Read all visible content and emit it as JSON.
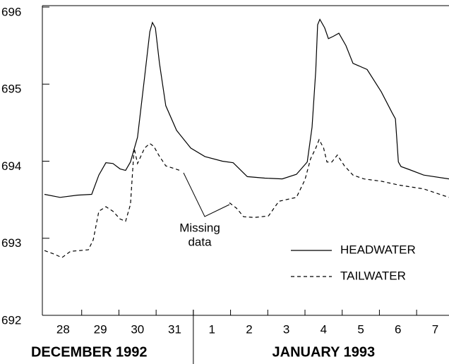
{
  "chart_data": {
    "type": "line",
    "xlim": [
      0,
      10.87
    ],
    "ylim": [
      692,
      696
    ],
    "yticks": [
      692,
      693,
      694,
      695,
      696
    ],
    "xticks": [
      {
        "value": 0.5,
        "label": "28"
      },
      {
        "value": 1.5,
        "label": "29"
      },
      {
        "value": 2.5,
        "label": "30"
      },
      {
        "value": 3.5,
        "label": "31"
      },
      {
        "value": 4.5,
        "label": "1"
      },
      {
        "value": 5.5,
        "label": "2"
      },
      {
        "value": 6.5,
        "label": "3"
      },
      {
        "value": 7.5,
        "label": "4"
      },
      {
        "value": 8.5,
        "label": "5"
      },
      {
        "value": 9.5,
        "label": "6"
      },
      {
        "value": 10.5,
        "label": "7"
      }
    ],
    "xminorticks": [
      1,
      2,
      3,
      4,
      5,
      6,
      7,
      8,
      9,
      10
    ],
    "month_labels": [
      {
        "value": 1.2,
        "label": "DECEMBER  1992"
      },
      {
        "value": 7.5,
        "label": "JANUARY  1993"
      }
    ],
    "month_divider": 4,
    "annotation": {
      "lines": [
        "Missing",
        "data"
      ]
    },
    "legend": "lower right",
    "series": [
      {
        "name": "HEADWATER",
        "color": "#000000",
        "style": "solid",
        "x": [
          0,
          0.42,
          0.89,
          1.27,
          1.46,
          1.65,
          1.84,
          2.03,
          2.18,
          2.31,
          2.5,
          2.69,
          2.83,
          2.9,
          2.98,
          3.09,
          3.26,
          3.55,
          3.93,
          4.31,
          4.78,
          5.07,
          5.45,
          5.92,
          6.39,
          6.77,
          7.06,
          7.19,
          7.29,
          7.34,
          7.4,
          7.53,
          7.63,
          7.76,
          7.91,
          8.1,
          8.29,
          8.67,
          9.05,
          9.34,
          9.43,
          9.51,
          9.58,
          9.81,
          10.19,
          10.87
        ],
        "values": [
          693.57,
          693.53,
          693.56,
          693.57,
          693.82,
          693.98,
          693.97,
          693.9,
          693.88,
          693.99,
          694.31,
          695.09,
          695.68,
          695.8,
          695.73,
          695.27,
          694.72,
          694.4,
          694.17,
          694.06,
          694.0,
          693.98,
          693.8,
          693.78,
          693.77,
          693.83,
          693.99,
          694.44,
          695.18,
          695.77,
          695.84,
          695.73,
          695.59,
          695.62,
          695.66,
          695.5,
          695.27,
          695.19,
          694.9,
          694.63,
          694.55,
          693.99,
          693.93,
          693.89,
          693.82,
          693.77
        ]
      },
      {
        "name": "TAILWATER",
        "color": "#000000",
        "style": "dashed",
        "x": [
          0,
          0.23,
          0.47,
          0.7,
          1.18,
          1.31,
          1.46,
          1.65,
          1.84,
          2.03,
          2.18,
          2.31,
          2.41,
          2.5,
          2.69,
          2.83,
          2.94,
          3.07,
          3.26,
          3.45,
          3.64,
          null,
          4.97,
          5.16,
          5.35,
          5.64,
          6.02,
          6.3,
          6.77,
          7.0,
          7.15,
          7.29,
          7.38,
          7.5,
          7.59,
          7.72,
          7.87,
          8.06,
          8.29,
          8.58,
          9.05,
          9.53,
          10.19,
          10.87
        ],
        "values": [
          692.84,
          692.8,
          692.75,
          692.83,
          692.85,
          692.98,
          693.35,
          693.41,
          693.35,
          693.25,
          693.22,
          693.44,
          694.17,
          693.97,
          694.17,
          694.23,
          694.19,
          694.08,
          693.94,
          693.91,
          693.88,
          null,
          693.46,
          693.39,
          693.28,
          693.27,
          693.29,
          693.48,
          693.53,
          693.76,
          694.03,
          694.17,
          694.28,
          694.17,
          693.99,
          693.99,
          694.08,
          693.94,
          693.82,
          693.77,
          693.74,
          693.69,
          693.64,
          693.53
        ]
      }
    ]
  }
}
